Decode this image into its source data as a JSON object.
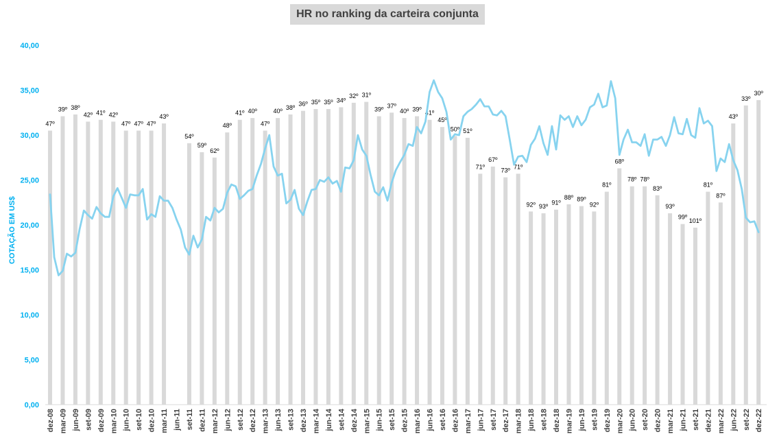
{
  "chart_data": {
    "type": "bar+line",
    "title": "HR no ranking da carteira conjunta",
    "ylabel": "COTAÇÃO EM US$",
    "ylim": [
      0,
      40
    ],
    "y_ticks": [
      "0,00",
      "5,00",
      "10,00",
      "15,00",
      "20,00",
      "25,00",
      "30,00",
      "35,00",
      "40,00"
    ],
    "grid": false,
    "x_tick_labels": [
      "dez-08",
      "mar-09",
      "jun-09",
      "set-09",
      "dez-09",
      "mar-10",
      "jun-10",
      "set-10",
      "dez-10",
      "mar-11",
      "jun-11",
      "set-11",
      "dez-11",
      "mar-12",
      "jun-12",
      "set-12",
      "dez-12",
      "mar-13",
      "jun-13",
      "set-13",
      "dez-13",
      "mar-14",
      "jun-14",
      "set-14",
      "dez-14",
      "mar-15",
      "jun-15",
      "set-15",
      "dez-15",
      "mar-16",
      "jun-16",
      "set-16",
      "dez-16",
      "mar-17",
      "jun-17",
      "set-17",
      "dez-17",
      "mar-18",
      "jun-18",
      "set-18",
      "dez-18",
      "mar-19",
      "jun-19",
      "set-19",
      "dez-19",
      "mar-20",
      "jun-20",
      "set-20",
      "dez-20",
      "mar-21",
      "jun-21",
      "set-21",
      "dez-21",
      "mar-22",
      "jun-22",
      "set-22",
      "dez-22"
    ],
    "bars": [
      {
        "m": 0,
        "v": 30.5,
        "label": "47º"
      },
      {
        "m": 1,
        "v": 32.1,
        "label": "39º"
      },
      {
        "m": 2,
        "v": 32.3,
        "label": "38º"
      },
      {
        "m": 3,
        "v": 31.5,
        "label": "42º"
      },
      {
        "m": 4,
        "v": 31.7,
        "label": "41º"
      },
      {
        "m": 5,
        "v": 31.5,
        "label": "42º"
      },
      {
        "m": 6,
        "v": 30.5,
        "label": "47º"
      },
      {
        "m": 7,
        "v": 30.5,
        "label": "47º"
      },
      {
        "m": 8,
        "v": 30.5,
        "label": "47º"
      },
      {
        "m": 9,
        "v": 31.3,
        "label": "43º"
      },
      {
        "m": 11,
        "v": 29.1,
        "label": "54º"
      },
      {
        "m": 12,
        "v": 28.1,
        "label": "59º"
      },
      {
        "m": 13,
        "v": 27.5,
        "label": "62º"
      },
      {
        "m": 14,
        "v": 30.3,
        "label": "48º"
      },
      {
        "m": 15,
        "v": 31.7,
        "label": "41º"
      },
      {
        "m": 16,
        "v": 31.9,
        "label": "40º"
      },
      {
        "m": 17,
        "v": 30.5,
        "label": "47º"
      },
      {
        "m": 18,
        "v": 31.9,
        "label": "40º"
      },
      {
        "m": 19,
        "v": 32.3,
        "label": "38º"
      },
      {
        "m": 20,
        "v": 32.7,
        "label": "36º"
      },
      {
        "m": 21,
        "v": 32.9,
        "label": "35º"
      },
      {
        "m": 22,
        "v": 32.9,
        "label": "35º"
      },
      {
        "m": 23,
        "v": 33.1,
        "label": "34º"
      },
      {
        "m": 24,
        "v": 33.6,
        "label": "32º"
      },
      {
        "m": 25,
        "v": 33.7,
        "label": "31º"
      },
      {
        "m": 26,
        "v": 32.1,
        "label": "39º"
      },
      {
        "m": 27,
        "v": 32.5,
        "label": "37º"
      },
      {
        "m": 28,
        "v": 31.9,
        "label": "40º"
      },
      {
        "m": 29,
        "v": 32.1,
        "label": "39º"
      },
      {
        "m": 30,
        "v": 31.7,
        "label": "41º"
      },
      {
        "m": 31,
        "v": 30.9,
        "label": "45º"
      },
      {
        "m": 32,
        "v": 29.9,
        "label": "50º"
      },
      {
        "m": 33,
        "v": 29.7,
        "label": "51º"
      },
      {
        "m": 34,
        "v": 25.7,
        "label": "71º"
      },
      {
        "m": 35,
        "v": 26.5,
        "label": "67º"
      },
      {
        "m": 36,
        "v": 25.3,
        "label": "73º"
      },
      {
        "m": 37,
        "v": 25.7,
        "label": "71º"
      },
      {
        "m": 38,
        "v": 21.5,
        "label": "92º"
      },
      {
        "m": 39,
        "v": 21.3,
        "label": "93º"
      },
      {
        "m": 40,
        "v": 21.7,
        "label": "91º"
      },
      {
        "m": 41,
        "v": 22.3,
        "label": "88º"
      },
      {
        "m": 42,
        "v": 22.1,
        "label": "89º"
      },
      {
        "m": 43,
        "v": 21.5,
        "label": "92º"
      },
      {
        "m": 44,
        "v": 23.7,
        "label": "81º"
      },
      {
        "m": 45,
        "v": 26.3,
        "label": "68º"
      },
      {
        "m": 46,
        "v": 24.3,
        "label": "78º"
      },
      {
        "m": 47,
        "v": 24.3,
        "label": "78º"
      },
      {
        "m": 48,
        "v": 23.3,
        "label": "83º"
      },
      {
        "m": 49,
        "v": 21.3,
        "label": "93º"
      },
      {
        "m": 50,
        "v": 20.1,
        "label": "99º"
      },
      {
        "m": 51,
        "v": 19.7,
        "label": "101º"
      },
      {
        "m": 52,
        "v": 23.7,
        "label": "81º"
      },
      {
        "m": 53,
        "v": 22.5,
        "label": "87º"
      },
      {
        "m": 54,
        "v": 31.3,
        "label": "43º"
      },
      {
        "m": 55,
        "v": 33.3,
        "label": "33º"
      },
      {
        "m": 56,
        "v": 33.9,
        "label": "30º"
      }
    ],
    "series": [
      {
        "type": "line",
        "color": "#87d3ef",
        "points": [
          [
            0,
            23.4
          ],
          [
            0.33,
            16.4
          ],
          [
            0.67,
            14.4
          ],
          [
            1,
            14.9
          ],
          [
            1.33,
            16.8
          ],
          [
            1.67,
            16.5
          ],
          [
            2,
            16.9
          ],
          [
            2.33,
            19.5
          ],
          [
            2.67,
            21.6
          ],
          [
            3,
            21.1
          ],
          [
            3.33,
            20.7
          ],
          [
            3.67,
            22.0
          ],
          [
            4,
            21.3
          ],
          [
            4.33,
            20.9
          ],
          [
            4.67,
            20.9
          ],
          [
            5,
            23.2
          ],
          [
            5.33,
            24.1
          ],
          [
            5.67,
            23.0
          ],
          [
            6,
            21.9
          ],
          [
            6.33,
            23.4
          ],
          [
            6.67,
            23.3
          ],
          [
            7,
            23.3
          ],
          [
            7.33,
            24.0
          ],
          [
            7.67,
            20.6
          ],
          [
            8,
            21.2
          ],
          [
            8.33,
            20.9
          ],
          [
            8.67,
            23.2
          ],
          [
            9,
            22.7
          ],
          [
            9.33,
            22.7
          ],
          [
            9.67,
            21.9
          ],
          [
            10,
            20.6
          ],
          [
            10.33,
            19.5
          ],
          [
            10.67,
            17.5
          ],
          [
            11,
            16.7
          ],
          [
            11.33,
            18.8
          ],
          [
            11.67,
            17.5
          ],
          [
            12,
            18.4
          ],
          [
            12.33,
            20.9
          ],
          [
            12.67,
            20.5
          ],
          [
            13,
            21.9
          ],
          [
            13.33,
            21.4
          ],
          [
            13.67,
            21.8
          ],
          [
            14,
            23.6
          ],
          [
            14.33,
            24.5
          ],
          [
            14.67,
            24.3
          ],
          [
            15,
            22.9
          ],
          [
            15.33,
            23.3
          ],
          [
            15.67,
            23.8
          ],
          [
            16,
            24.0
          ],
          [
            16.33,
            25.5
          ],
          [
            16.67,
            26.8
          ],
          [
            17,
            28.5
          ],
          [
            17.33,
            30.0
          ],
          [
            17.67,
            26.5
          ],
          [
            18,
            25.5
          ],
          [
            18.33,
            25.7
          ],
          [
            18.67,
            22.4
          ],
          [
            19,
            22.8
          ],
          [
            19.33,
            23.9
          ],
          [
            19.67,
            21.8
          ],
          [
            20,
            21.1
          ],
          [
            20.33,
            22.6
          ],
          [
            20.67,
            23.9
          ],
          [
            21,
            24.0
          ],
          [
            21.33,
            25.0
          ],
          [
            21.67,
            24.8
          ],
          [
            22,
            25.3
          ],
          [
            22.33,
            24.6
          ],
          [
            22.67,
            24.9
          ],
          [
            23,
            23.7
          ],
          [
            23.33,
            26.4
          ],
          [
            23.67,
            26.3
          ],
          [
            24,
            27.2
          ],
          [
            24.33,
            30.0
          ],
          [
            24.67,
            28.4
          ],
          [
            25,
            27.7
          ],
          [
            25.33,
            25.6
          ],
          [
            25.67,
            23.7
          ],
          [
            26,
            23.3
          ],
          [
            26.33,
            24.2
          ],
          [
            26.67,
            22.7
          ],
          [
            27,
            24.7
          ],
          [
            27.33,
            26.1
          ],
          [
            27.67,
            27.0
          ],
          [
            28,
            27.8
          ],
          [
            28.33,
            29.0
          ],
          [
            28.67,
            28.8
          ],
          [
            29,
            30.9
          ],
          [
            29.33,
            30.2
          ],
          [
            29.67,
            31.5
          ],
          [
            30,
            34.8
          ],
          [
            30.33,
            36.1
          ],
          [
            30.67,
            34.8
          ],
          [
            31,
            34.1
          ],
          [
            31.33,
            32.6
          ],
          [
            31.67,
            29.5
          ],
          [
            32,
            30.1
          ],
          [
            32.33,
            30.0
          ],
          [
            32.67,
            32.1
          ],
          [
            33,
            32.6
          ],
          [
            33.33,
            32.9
          ],
          [
            33.67,
            33.4
          ],
          [
            34,
            34.0
          ],
          [
            34.33,
            33.2
          ],
          [
            34.67,
            33.2
          ],
          [
            35,
            32.3
          ],
          [
            35.33,
            32.2
          ],
          [
            35.67,
            32.7
          ],
          [
            36,
            32.1
          ],
          [
            36.33,
            29.5
          ],
          [
            36.67,
            26.7
          ],
          [
            37,
            27.6
          ],
          [
            37.33,
            27.7
          ],
          [
            37.67,
            27.0
          ],
          [
            38,
            28.9
          ],
          [
            38.33,
            29.6
          ],
          [
            38.67,
            31.0
          ],
          [
            39,
            29.1
          ],
          [
            39.33,
            27.8
          ],
          [
            39.67,
            31.0
          ],
          [
            40,
            28.4
          ],
          [
            40.33,
            32.2
          ],
          [
            40.67,
            31.7
          ],
          [
            41,
            32.1
          ],
          [
            41.33,
            30.9
          ],
          [
            41.67,
            32.1
          ],
          [
            42,
            31.1
          ],
          [
            42.33,
            31.7
          ],
          [
            42.67,
            33.1
          ],
          [
            43,
            33.4
          ],
          [
            43.33,
            34.6
          ],
          [
            43.67,
            33.1
          ],
          [
            44,
            33.3
          ],
          [
            44.33,
            36.0
          ],
          [
            44.67,
            34.1
          ],
          [
            45,
            27.8
          ],
          [
            45.33,
            29.5
          ],
          [
            45.67,
            30.6
          ],
          [
            46,
            29.2
          ],
          [
            46.33,
            29.2
          ],
          [
            46.67,
            28.8
          ],
          [
            47,
            30.1
          ],
          [
            47.33,
            27.7
          ],
          [
            47.67,
            29.5
          ],
          [
            48,
            29.5
          ],
          [
            48.33,
            29.8
          ],
          [
            48.67,
            28.8
          ],
          [
            49,
            30.0
          ],
          [
            49.33,
            32.0
          ],
          [
            49.67,
            30.2
          ],
          [
            50,
            30.1
          ],
          [
            50.33,
            31.8
          ],
          [
            50.67,
            30.0
          ],
          [
            51,
            29.7
          ],
          [
            51.33,
            33.0
          ],
          [
            51.67,
            31.3
          ],
          [
            52,
            31.6
          ],
          [
            52.33,
            31.0
          ],
          [
            52.67,
            26.0
          ],
          [
            53,
            27.4
          ],
          [
            53.33,
            27.0
          ],
          [
            53.67,
            29.0
          ],
          [
            54,
            27.2
          ],
          [
            54.33,
            26.1
          ],
          [
            54.67,
            24.0
          ],
          [
            55,
            20.8
          ],
          [
            55.33,
            20.3
          ],
          [
            55.67,
            20.4
          ],
          [
            56,
            19.2
          ]
        ]
      }
    ]
  }
}
